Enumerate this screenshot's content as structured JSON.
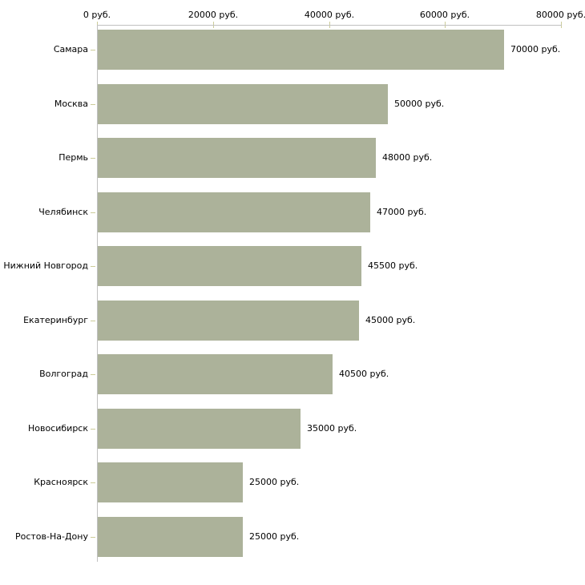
{
  "chart_data": {
    "type": "bar",
    "orientation": "horizontal",
    "title": "",
    "categories": [
      "Самара",
      "Москва",
      "Пермь",
      "Челябинск",
      "Нижний Новгород",
      "Екатеринбург",
      "Волгоград",
      "Новосибирск",
      "Красноярск",
      "Ростов-На-Дону"
    ],
    "values": [
      70000,
      50000,
      48000,
      47000,
      45500,
      45000,
      40500,
      35000,
      25000,
      25000
    ],
    "value_labels": [
      "70000 руб.",
      "50000 руб.",
      "48000 руб.",
      "47000 руб.",
      "45500 руб.",
      "45000 руб.",
      "40500 руб.",
      "35000 руб.",
      "25000 руб.",
      "25000 руб."
    ],
    "x_tick_labels": [
      "0 руб.",
      "20000 руб.",
      "40000 руб.",
      "60000 руб.",
      "80000 руб."
    ],
    "xlim": [
      0,
      80000
    ],
    "xlabel": "",
    "ylabel": "",
    "grid": "off",
    "legend": "none",
    "colors": {
      "bar": "#acb29a",
      "axis_line": "#c0c0c0",
      "tick_mark": "#cccc99",
      "text": "#000000",
      "background": "#ffffff"
    }
  }
}
